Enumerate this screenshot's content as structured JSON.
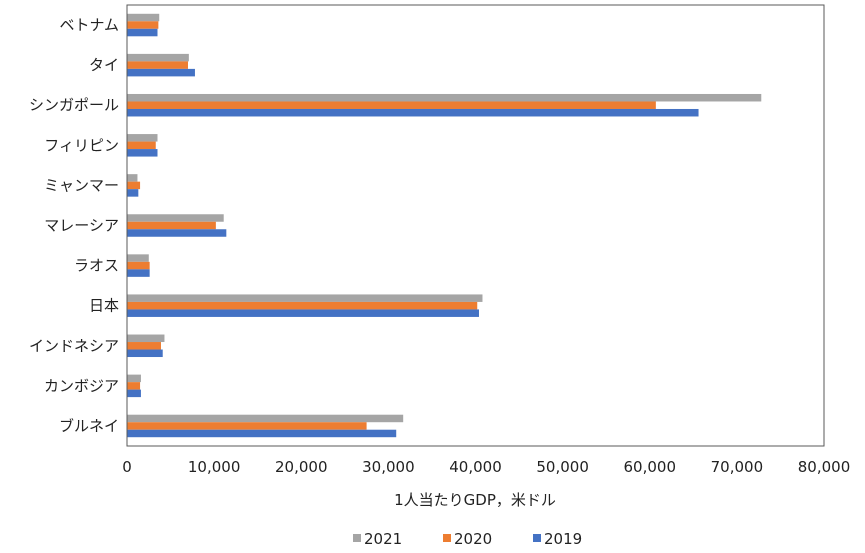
{
  "chart_data": {
    "type": "bar",
    "orientation": "horizontal",
    "categories": [
      "ベトナム",
      "タイ",
      "シンガポール",
      "フィリピン",
      "ミャンマー",
      "マレーシア",
      "ラオス",
      "日本",
      "インドネシア",
      "カンボジア",
      "ブルネイ"
    ],
    "series": [
      {
        "name": "2021",
        "color": "#a5a5a5",
        "values": [
          3700,
          7100,
          72800,
          3500,
          1200,
          11100,
          2500,
          40800,
          4300,
          1600,
          31700
        ]
      },
      {
        "name": "2020",
        "color": "#ed7d31",
        "values": [
          3600,
          7000,
          60700,
          3300,
          1500,
          10200,
          2600,
          40200,
          3900,
          1500,
          27500
        ]
      },
      {
        "name": "2019",
        "color": "#4472c4",
        "values": [
          3500,
          7800,
          65600,
          3500,
          1300,
          11400,
          2600,
          40400,
          4100,
          1600,
          30900
        ]
      }
    ],
    "xlabel": "1人当たりGDP，米ドル",
    "xlim": [
      0,
      80000
    ],
    "xticks": [
      0,
      10000,
      20000,
      30000,
      40000,
      50000,
      60000,
      70000,
      80000
    ],
    "xtick_labels": [
      "0",
      "10,000",
      "20,000",
      "30,000",
      "40,000",
      "50,000",
      "60,000",
      "70,000",
      "80,000"
    ],
    "grid": false,
    "legend_position": "bottom"
  }
}
